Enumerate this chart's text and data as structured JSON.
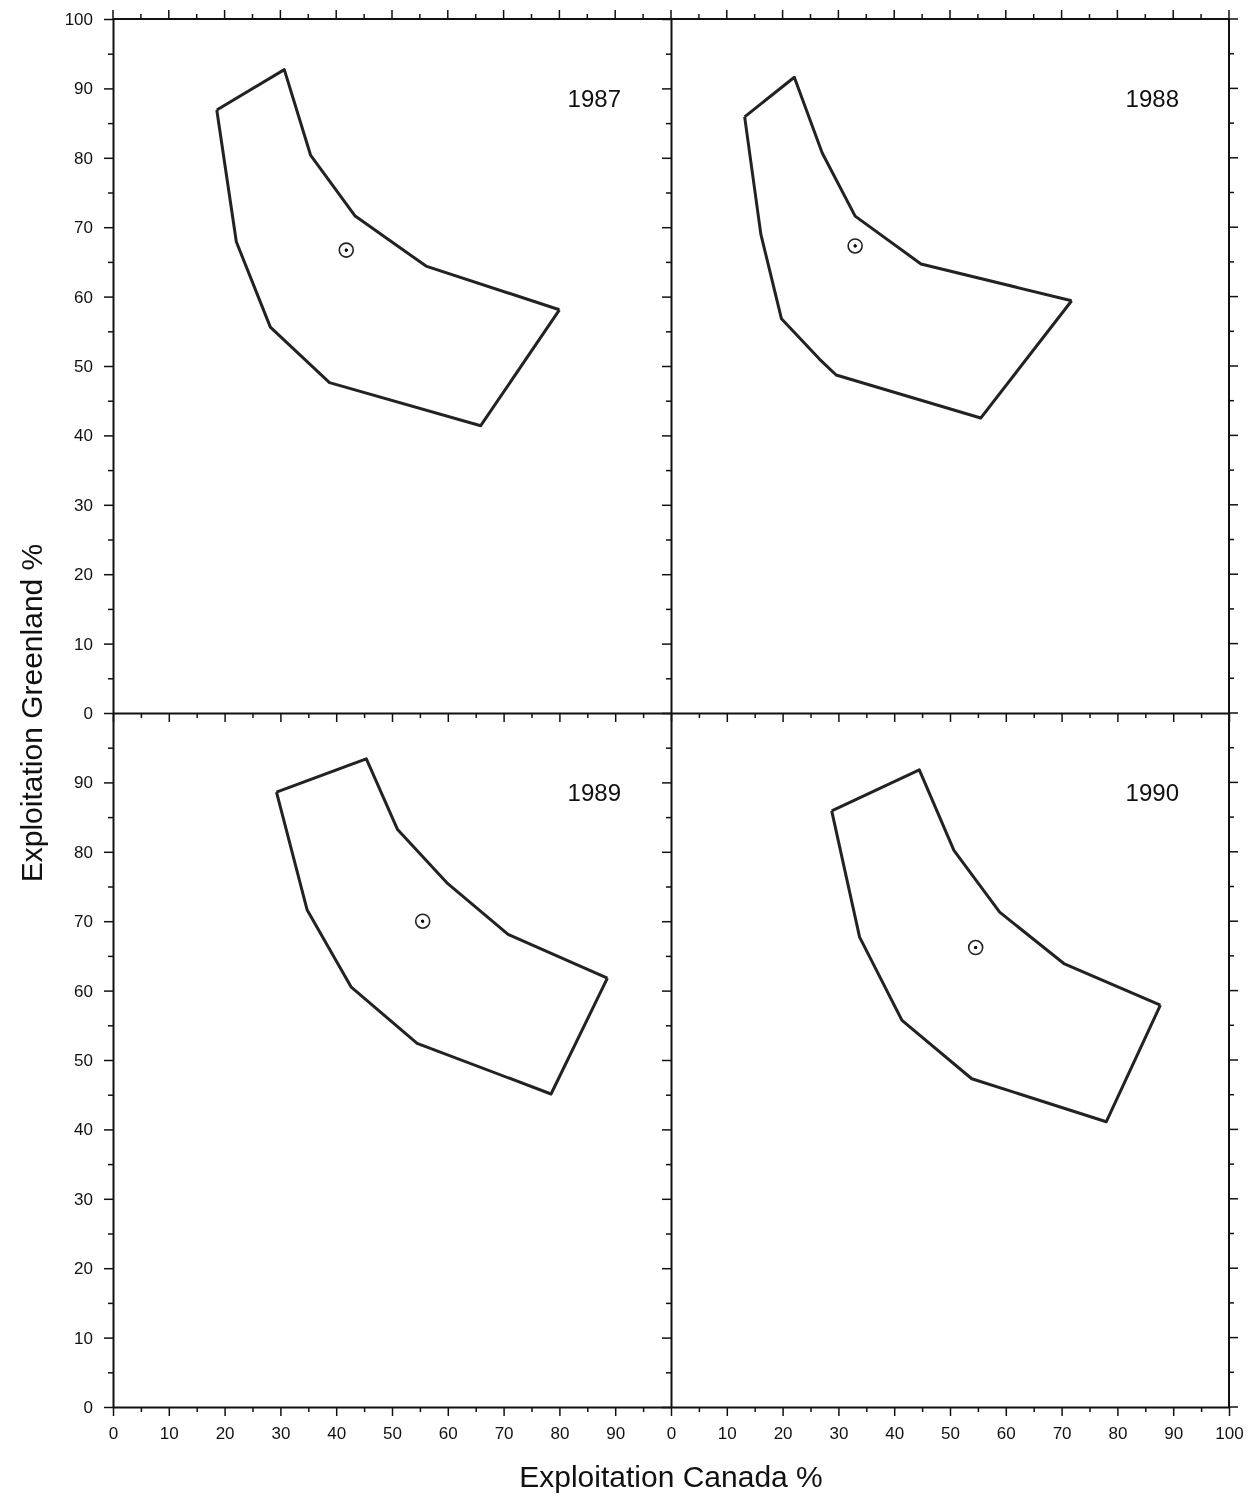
{
  "chart_data": [
    {
      "type": "line",
      "title": "1987",
      "ylabel": "Exploitation Greenland %",
      "xlim": [
        0,
        100
      ],
      "ylim": [
        0,
        100
      ],
      "tick_labels": "y",
      "xticks": [
        0,
        {
          "value": 5,
          "label": null
        },
        10,
        {
          "value": 15,
          "label": null
        },
        20,
        {
          "value": 25,
          "label": null
        },
        30,
        {
          "value": 35,
          "label": null
        },
        40,
        {
          "value": 45,
          "label": null
        },
        50,
        {
          "value": 55,
          "label": null
        },
        60,
        {
          "value": 65,
          "label": null
        },
        70,
        {
          "value": 75,
          "label": null
        },
        80,
        {
          "value": 85,
          "label": null
        },
        90,
        {
          "value": 95,
          "label": null
        }
      ],
      "yticks": [
        0,
        {
          "value": 5,
          "label": null
        },
        10,
        {
          "value": 15,
          "label": null
        },
        20,
        {
          "value": 25,
          "label": null
        },
        30,
        {
          "value": 35,
          "label": null
        },
        40,
        {
          "value": 45,
          "label": null
        },
        50,
        {
          "value": 55,
          "label": null
        },
        60,
        {
          "value": 65,
          "label": null
        },
        70,
        {
          "value": 75,
          "label": null
        },
        80,
        {
          "value": 85,
          "label": null
        },
        90,
        {
          "value": 95,
          "label": null
        },
        100
      ],
      "series": [
        {
          "color": "#222222",
          "x": [
            18.6,
            30.7,
            35.4,
            43.4,
            56.1,
            80.0
          ],
          "values": [
            86.9,
            92.7,
            80.4,
            71.6,
            64.4,
            58.1
          ]
        },
        {
          "color": "#222222",
          "x": [
            18.6,
            22.1,
            28.2,
            38.8,
            65.9,
            80.0
          ],
          "values": [
            86.9,
            67.9,
            55.6,
            47.6,
            41.4,
            58.1
          ]
        },
        {
          "type": "scatter",
          "color": "#222222",
          "marker": "circle",
          "x": [
            41.8
          ],
          "values": [
            66.7
          ]
        }
      ]
    },
    {
      "type": "line",
      "title": "1988",
      "xlim": [
        0,
        100
      ],
      "ylim": [
        0,
        100
      ],
      "tick_labels": false,
      "xticks": [
        0,
        {
          "value": 5,
          "label": null
        },
        10,
        {
          "value": 15,
          "label": null
        },
        20,
        {
          "value": 25,
          "label": null
        },
        30,
        {
          "value": 35,
          "label": null
        },
        40,
        {
          "value": 45,
          "label": null
        },
        50,
        {
          "value": 55,
          "label": null
        },
        60,
        {
          "value": 65,
          "label": null
        },
        70,
        {
          "value": 75,
          "label": null
        },
        80,
        {
          "value": 85,
          "label": null
        },
        90,
        {
          "value": 95,
          "label": null
        },
        100
      ],
      "yticks": [
        0,
        {
          "value": 5,
          "label": null
        },
        10,
        {
          "value": 15,
          "label": null
        },
        20,
        {
          "value": 25,
          "label": null
        },
        30,
        {
          "value": 35,
          "label": null
        },
        40,
        {
          "value": 45,
          "label": null
        },
        50,
        {
          "value": 55,
          "label": null
        },
        60,
        {
          "value": 65,
          "label": null
        },
        70,
        {
          "value": 75,
          "label": null
        },
        80,
        {
          "value": 85,
          "label": null
        },
        90,
        {
          "value": 95,
          "label": null
        },
        100
      ],
      "series": [
        {
          "color": "#222222",
          "x": [
            13.2,
            22.1,
            27.1,
            33.0,
            44.8,
            71.8
          ],
          "values": [
            85.9,
            91.6,
            80.7,
            71.6,
            64.7,
            59.4
          ]
        },
        {
          "color": "#222222",
          "x": [
            13.2,
            16.1,
            19.8,
            26.6,
            29.6,
            55.5,
            71.8
          ],
          "values": [
            85.9,
            69.0,
            56.8,
            51.0,
            48.7,
            42.5,
            59.4
          ]
        },
        {
          "type": "scatter",
          "color": "#222222",
          "marker": "circle",
          "x": [
            33.0
          ],
          "values": [
            67.3
          ]
        }
      ]
    },
    {
      "type": "line",
      "title": "1989",
      "xlabel": "Exploitation Canada %",
      "xlim": [
        0,
        100
      ],
      "ylim": [
        0,
        100
      ],
      "xticks": [
        0,
        {
          "value": 5,
          "label": null
        },
        10,
        {
          "value": 15,
          "label": null
        },
        20,
        {
          "value": 25,
          "label": null
        },
        30,
        {
          "value": 35,
          "label": null
        },
        40,
        {
          "value": 45,
          "label": null
        },
        50,
        {
          "value": 55,
          "label": null
        },
        60,
        {
          "value": 65,
          "label": null
        },
        70,
        {
          "value": 75,
          "label": null
        },
        80,
        {
          "value": 85,
          "label": null
        },
        90,
        {
          "value": 95,
          "label": null
        }
      ],
      "yticks": [
        0,
        {
          "value": 5,
          "label": null
        },
        10,
        {
          "value": 15,
          "label": null
        },
        20,
        {
          "value": 25,
          "label": null
        },
        30,
        {
          "value": 35,
          "label": null
        },
        40,
        {
          "value": 45,
          "label": null
        },
        50,
        {
          "value": 55,
          "label": null
        },
        60,
        {
          "value": 65,
          "label": null
        },
        70,
        {
          "value": 75,
          "label": null
        },
        80,
        {
          "value": 85,
          "label": null
        },
        90,
        {
          "value": 95,
          "label": null
        }
      ],
      "series": [
        {
          "color": "#222222",
          "x": [
            29.3,
            45.4,
            51.0,
            60.0,
            70.8,
            88.6
          ],
          "values": [
            88.6,
            93.4,
            83.2,
            75.4,
            68.1,
            61.8
          ]
        },
        {
          "color": "#222222",
          "x": [
            29.3,
            34.8,
            42.7,
            54.5,
            78.5,
            88.6
          ],
          "values": [
            88.6,
            71.6,
            60.5,
            52.4,
            45.1,
            61.8
          ]
        },
        {
          "type": "scatter",
          "color": "#222222",
          "marker": "circle",
          "x": [
            55.5
          ],
          "values": [
            70.0
          ]
        }
      ]
    },
    {
      "type": "line",
      "title": "1990",
      "xlim": [
        0,
        100
      ],
      "ylim": [
        0,
        100
      ],
      "tick_labels": "x",
      "xticks": [
        0,
        {
          "value": 5,
          "label": null
        },
        10,
        {
          "value": 15,
          "label": null
        },
        20,
        {
          "value": 25,
          "label": null
        },
        30,
        {
          "value": 35,
          "label": null
        },
        40,
        {
          "value": 45,
          "label": null
        },
        50,
        {
          "value": 55,
          "label": null
        },
        60,
        {
          "value": 65,
          "label": null
        },
        70,
        {
          "value": 75,
          "label": null
        },
        80,
        {
          "value": 85,
          "label": null
        },
        90,
        {
          "value": 95,
          "label": null
        },
        100
      ],
      "yticks": [
        0,
        {
          "value": 5,
          "label": null
        },
        10,
        {
          "value": 15,
          "label": null
        },
        20,
        {
          "value": 25,
          "label": null
        },
        30,
        {
          "value": 35,
          "label": null
        },
        40,
        {
          "value": 45,
          "label": null
        },
        50,
        {
          "value": 55,
          "label": null
        },
        60,
        {
          "value": 65,
          "label": null
        },
        70,
        {
          "value": 75,
          "label": null
        },
        80,
        {
          "value": 85,
          "label": null
        },
        90,
        {
          "value": 95,
          "label": null
        }
      ],
      "series": [
        {
          "color": "#222222",
          "x": [
            28.8,
            44.5,
            50.7,
            58.9,
            70.4,
            87.7
          ],
          "values": [
            85.9,
            91.8,
            80.2,
            71.3,
            63.9,
            57.9
          ]
        },
        {
          "color": "#222222",
          "x": [
            28.8,
            33.8,
            41.4,
            53.9,
            78.0,
            87.7
          ],
          "values": [
            85.9,
            67.7,
            55.7,
            47.3,
            41.1,
            57.9
          ]
        },
        {
          "type": "scatter",
          "color": "#222222",
          "marker": "circle",
          "x": [
            54.6
          ],
          "values": [
            66.2
          ]
        }
      ]
    }
  ]
}
